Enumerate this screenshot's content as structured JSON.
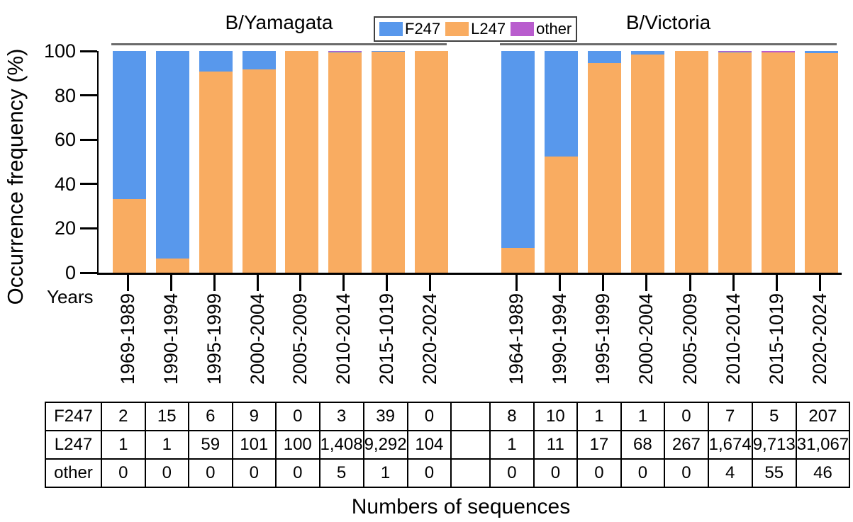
{
  "chart_data": {
    "type": "bar",
    "stacked": true,
    "title": "",
    "ylabel": "Occurrence frequency (%)",
    "xlabel": "Years",
    "ylim": [
      0,
      100
    ],
    "yticks": [
      0,
      20,
      40,
      60,
      80,
      100
    ],
    "grid": false,
    "stack_order_bottom_to_top": [
      "L247",
      "F247",
      "other"
    ],
    "series_colors": {
      "F247": "#5898EC",
      "L247": "#F9AC61",
      "other": "#B95DCE"
    },
    "legend": {
      "position": "top-center",
      "items": [
        "F247",
        "L247",
        "other"
      ]
    },
    "values_unit": "sequence counts; bar segment heights are percent of each column total",
    "groups": [
      {
        "title": "B/Yamagata",
        "categories": [
          "1969-1989",
          "1990-1994",
          "1995-1999",
          "2000-2004",
          "2005-2009",
          "2010-2014",
          "2015-1019",
          "2020-2024"
        ],
        "series": [
          {
            "name": "F247",
            "counts": [
              2,
              15,
              6,
              9,
              0,
              3,
              39,
              0
            ]
          },
          {
            "name": "L247",
            "counts": [
              1,
              1,
              59,
              101,
              100,
              1408,
              9292,
              104
            ]
          },
          {
            "name": "other",
            "counts": [
              0,
              0,
              0,
              0,
              0,
              5,
              1,
              0
            ]
          }
        ]
      },
      {
        "title": "B/Victoria",
        "categories": [
          "1964-1989",
          "1990-1994",
          "1995-1999",
          "2000-2004",
          "2005-2009",
          "2010-2014",
          "2015-1019",
          "2020-2024"
        ],
        "series": [
          {
            "name": "F247",
            "counts": [
              8,
              10,
              1,
              1,
              0,
              7,
              5,
              207
            ]
          },
          {
            "name": "L247",
            "counts": [
              1,
              11,
              17,
              68,
              267,
              1674,
              9713,
              31067
            ]
          },
          {
            "name": "other",
            "counts": [
              0,
              0,
              0,
              0,
              0,
              4,
              55,
              46
            ]
          }
        ]
      }
    ]
  },
  "table": {
    "caption": "Numbers of sequences",
    "rows": [
      {
        "label": "F247",
        "yamagata": [
          "2",
          "15",
          "6",
          "9",
          "0",
          "3",
          "39",
          "0"
        ],
        "victoria": [
          "8",
          "10",
          "1",
          "1",
          "0",
          "7",
          "5",
          "207"
        ]
      },
      {
        "label": "L247",
        "yamagata": [
          "1",
          "1",
          "59",
          "101",
          "100",
          "1,408",
          "9,292",
          "104"
        ],
        "victoria": [
          "1",
          "11",
          "17",
          "68",
          "267",
          "1,674",
          "9,713",
          "31,067"
        ]
      },
      {
        "label": "other",
        "yamagata": [
          "0",
          "0",
          "0",
          "0",
          "0",
          "5",
          "1",
          "0"
        ],
        "victoria": [
          "0",
          "0",
          "0",
          "0",
          "0",
          "4",
          "55",
          "46"
        ]
      }
    ]
  }
}
